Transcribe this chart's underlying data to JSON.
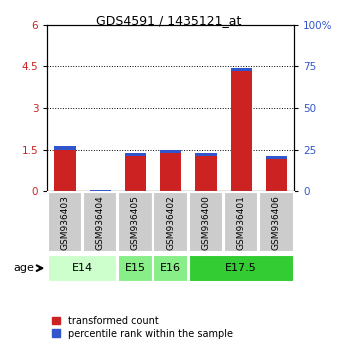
{
  "title": "GDS4591 / 1435121_at",
  "samples": [
    "GSM936403",
    "GSM936404",
    "GSM936405",
    "GSM936402",
    "GSM936400",
    "GSM936401",
    "GSM936406"
  ],
  "transformed_count": [
    1.62,
    0.05,
    1.38,
    1.48,
    1.38,
    4.45,
    1.28
  ],
  "percentile_rank_pct": [
    22,
    10,
    20,
    20,
    22,
    75,
    18
  ],
  "age_groups": [
    {
      "label": "E14",
      "span": [
        0,
        2
      ],
      "color": "#ccffcc"
    },
    {
      "label": "E15",
      "span": [
        2,
        3
      ],
      "color": "#88ee88"
    },
    {
      "label": "E16",
      "span": [
        3,
        4
      ],
      "color": "#88ee88"
    },
    {
      "label": "E17.5",
      "span": [
        4,
        7
      ],
      "color": "#33cc33"
    }
  ],
  "ylim_left": [
    0,
    6
  ],
  "ylim_right": [
    0,
    100
  ],
  "yticks_left": [
    0,
    1.5,
    3,
    4.5,
    6
  ],
  "yticks_left_labels": [
    "0",
    "1.5",
    "3",
    "4.5",
    "6"
  ],
  "yticks_right": [
    0,
    25,
    50,
    75,
    100
  ],
  "yticks_right_labels": [
    "0",
    "25",
    "50",
    "75",
    "100%"
  ],
  "bar_color_red": "#cc2222",
  "bar_color_blue": "#3355cc",
  "bg_color": "#cccccc",
  "age_label": "age",
  "legend_red": "transformed count",
  "legend_blue": "percentile rank within the sample"
}
